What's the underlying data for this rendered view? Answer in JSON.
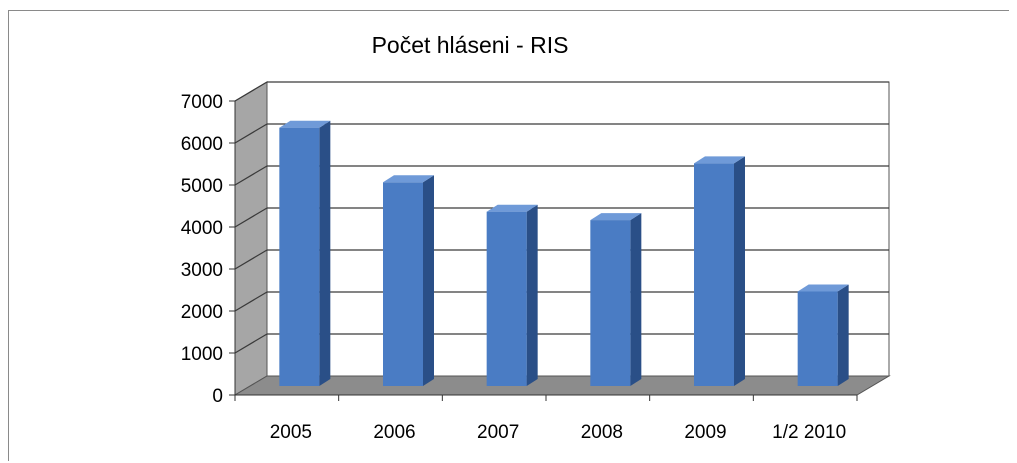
{
  "chart_data": {
    "type": "bar",
    "title": "Počet hláseni - RIS",
    "xlabel": "",
    "ylabel": "",
    "categories": [
      "2005",
      "2006",
      "2007",
      "2008",
      "2009",
      "1/2 2010"
    ],
    "values": [
      6150,
      4850,
      4150,
      3950,
      5300,
      2250
    ],
    "ylim": [
      0,
      7000
    ],
    "yticks": [
      "0",
      "1000",
      "2000",
      "3000",
      "4000",
      "5000",
      "6000",
      "7000"
    ],
    "grid": true,
    "legend": "none",
    "colors": {
      "bar_front": "#4a7cc4",
      "bar_side": "#2a4f87",
      "bar_top": "#6f9ad8",
      "floor": "#8c8c8c",
      "back_wall": "#ffffff",
      "side_wall": "#a6a6a6"
    }
  }
}
